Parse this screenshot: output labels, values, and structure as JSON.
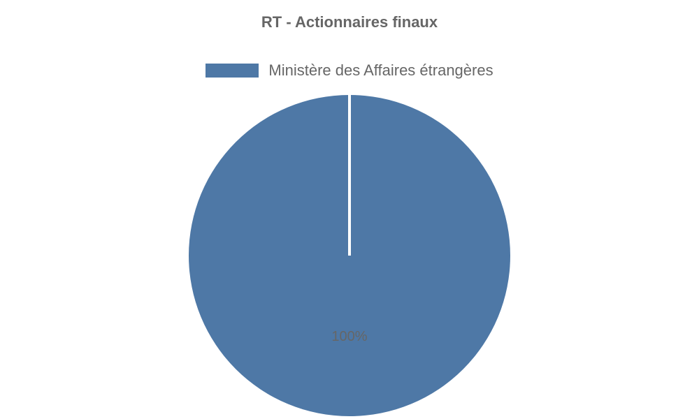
{
  "chart_data": {
    "type": "pie",
    "title": "RT - Actionnaires finaux",
    "legend_position": "top",
    "slices": [
      {
        "label": "Ministère des Affaires étrangères",
        "value": 100,
        "display": "100%",
        "color": "#4e78a6"
      }
    ]
  }
}
